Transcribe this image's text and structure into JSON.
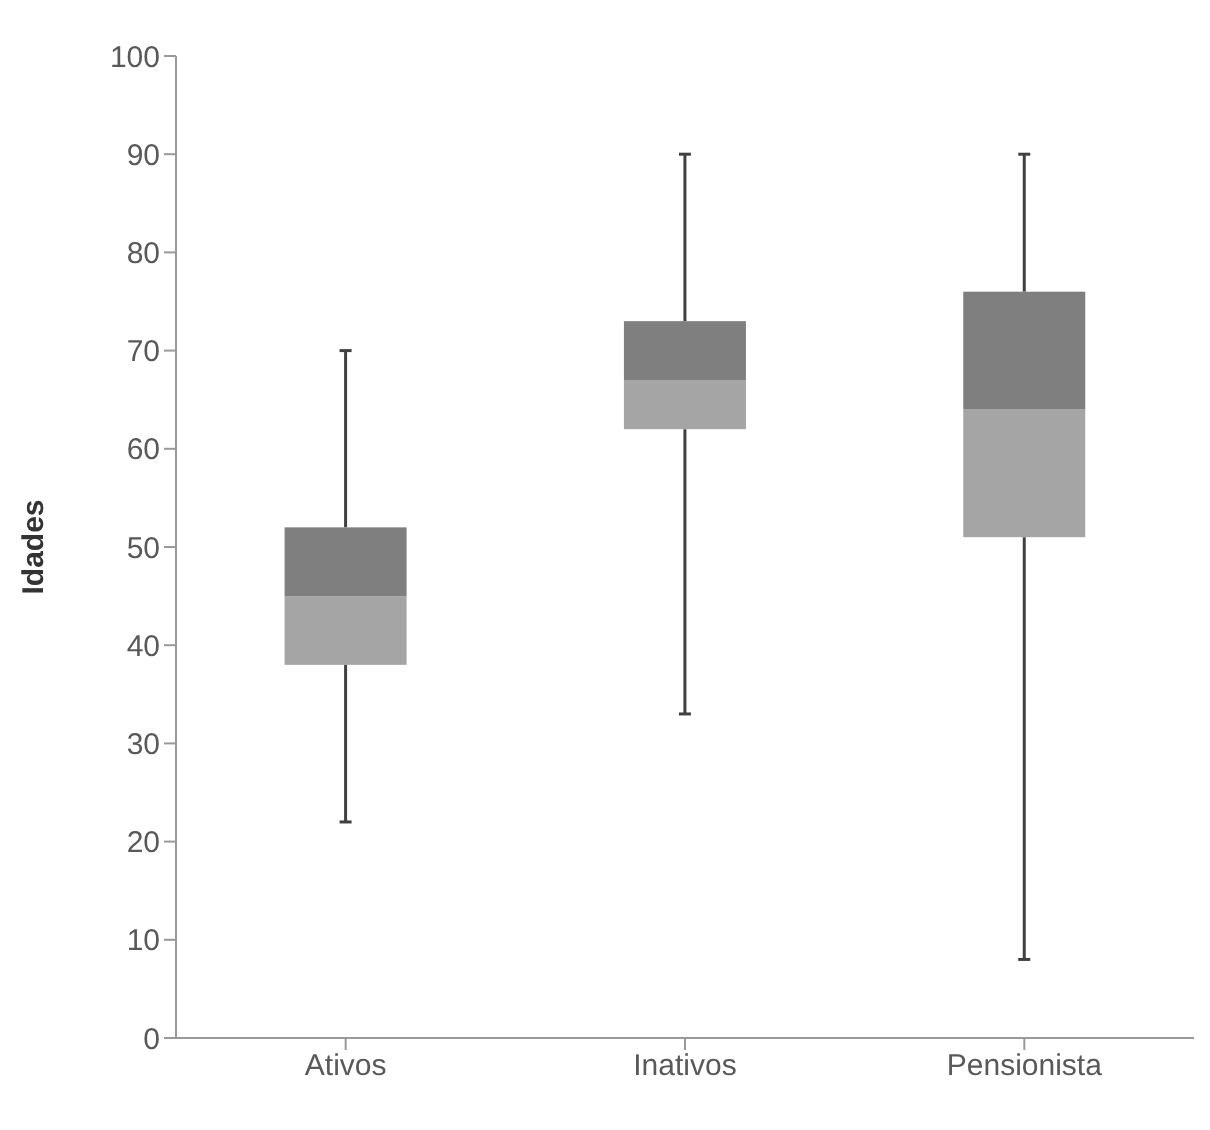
{
  "chart_data": {
    "type": "box",
    "ylabel": "Idades",
    "categories": [
      "Ativos",
      "Inativos",
      "Pensionista"
    ],
    "boxes": [
      {
        "low": 22,
        "q1": 38,
        "median": 45,
        "q3": 52,
        "high": 70
      },
      {
        "low": 33,
        "q1": 62,
        "median": 67,
        "q3": 73,
        "high": 90
      },
      {
        "low": 8,
        "q1": 51,
        "median": 64,
        "q3": 76,
        "high": 90
      }
    ],
    "color": "#7f7f7f",
    "ylim": [
      0,
      100
    ],
    "yticks": [
      0,
      10,
      20,
      30,
      40,
      50,
      60,
      70,
      80,
      90,
      100
    ],
    "grid": false,
    "legend": false
  }
}
